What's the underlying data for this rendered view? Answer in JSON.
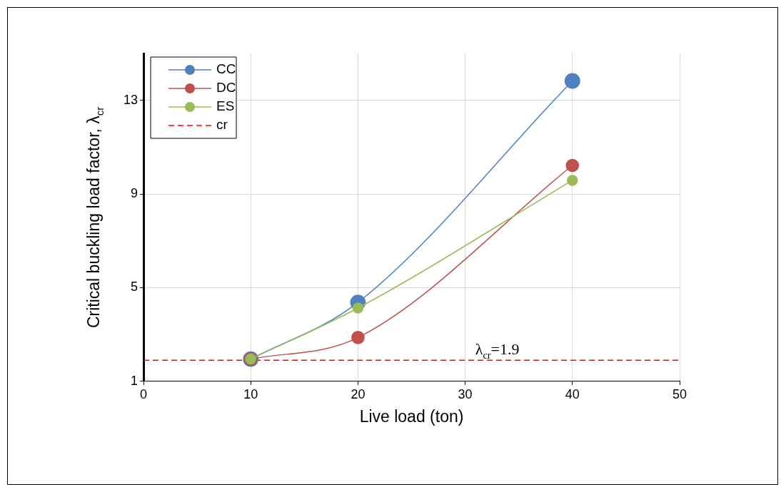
{
  "chart_data": {
    "type": "line",
    "xlabel": "Live load (ton)",
    "ylabel": "Critical buckling load factor, λ$_{cr}$",
    "x": [
      10,
      20,
      40
    ],
    "series": [
      {
        "name": "CC",
        "color": "#4f81bd",
        "values": [
          1.95,
          4.37,
          13.83
        ]
      },
      {
        "name": "DC",
        "color": "#c0504d",
        "values": [
          1.95,
          2.87,
          10.22
        ]
      },
      {
        "name": "ES",
        "color": "#9bbb59",
        "values": [
          1.95,
          4.13,
          9.58
        ]
      }
    ],
    "xlim": [
      0,
      50
    ],
    "xticks": [
      0,
      10,
      20,
      30,
      40,
      50
    ],
    "ylim": [
      1,
      15
    ],
    "yticks": [
      1,
      5,
      9,
      13
    ],
    "ref_lines": [
      {
        "axis": "y",
        "value": 1.9,
        "label": "cr",
        "color": "#ff0000",
        "line_style": "dashed"
      }
    ],
    "annotations": [
      {
        "text": "λ$_{cr}$=1.9",
        "x": 33,
        "y": 1.9
      }
    ],
    "grid": true,
    "legend": "top left",
    "marker": "circle",
    "line_style": "solid"
  }
}
